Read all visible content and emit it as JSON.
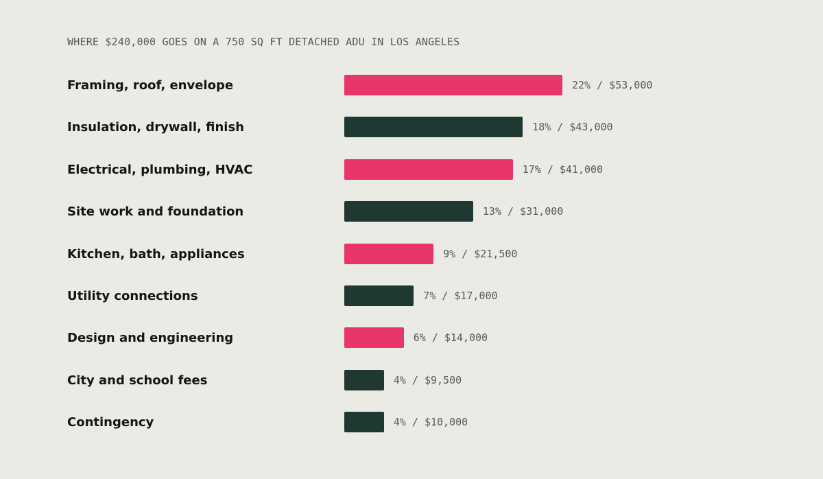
{
  "colors": {
    "background": "#e9ebe4",
    "accent": "#e8366b",
    "dark": "#1f3832",
    "label": "#151515",
    "muted": "#555b58"
  },
  "chart_data": {
    "type": "bar",
    "orientation": "horizontal",
    "title": "WHERE $240,000 GOES ON A 750 SQ FT DETACHED ADU IN LOS ANGELES",
    "categories": [
      "Framing, roof, envelope",
      "Insulation, drywall, finish",
      "Electrical, plumbing, HVAC",
      "Site work and foundation",
      "Kitchen, bath, appliances",
      "Utility connections",
      "Design and engineering",
      "City and school fees",
      "Contingency"
    ],
    "values": [
      53000,
      43000,
      41000,
      31000,
      21500,
      17000,
      14000,
      9500,
      10000
    ],
    "percents": [
      22,
      18,
      17,
      13,
      9,
      7,
      6,
      4,
      4
    ],
    "value_labels": [
      "22% / $53,000",
      "18% / $43,000",
      "17% / $41,000",
      "13% / $31,000",
      "9% / $21,500",
      "7% / $17,000",
      "6% / $14,000",
      "4% / $9,500",
      "4% / $10,000"
    ],
    "bar_colors": [
      "#e8366b",
      "#1f3832",
      "#e8366b",
      "#1f3832",
      "#e8366b",
      "#1f3832",
      "#e8366b",
      "#1f3832",
      "#1f3832"
    ],
    "xlim": [
      0,
      22
    ],
    "grid": false,
    "legend": "none"
  }
}
